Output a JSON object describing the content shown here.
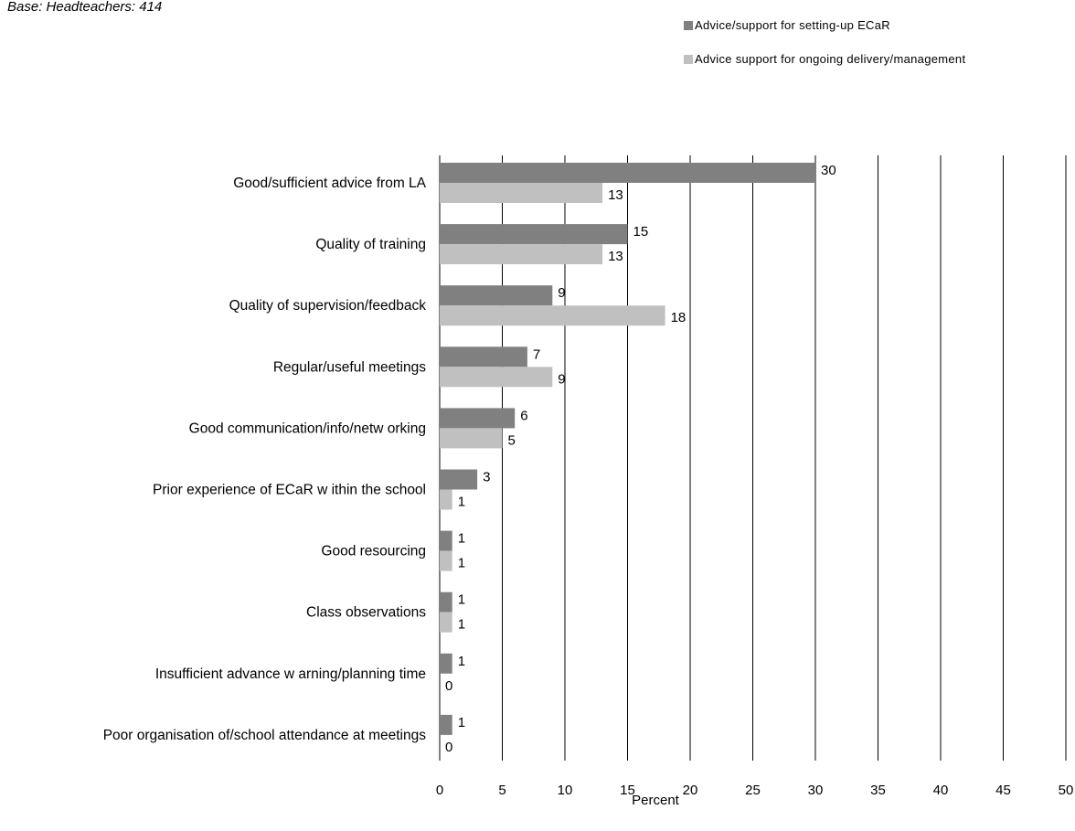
{
  "base_note": "Base: Headteachers: 414",
  "legend": [
    {
      "label": "Advice/support for setting-up ECaR",
      "color": "#808080"
    },
    {
      "label": "Advice support for ongoing delivery/management",
      "color": "#c0c0c0"
    }
  ],
  "chart_data": {
    "type": "bar",
    "orientation": "horizontal",
    "categories": [
      "Good/sufficient advice from LA",
      "Quality of training",
      "Quality of supervision/feedback",
      "Regular/useful meetings",
      "Good communication/info/netw orking",
      "Prior experience of ECaR w ithin the school",
      "Good resourcing",
      "Class observations",
      "Insufficient advance w arning/planning time",
      "Poor organisation of/school attendance at meetings"
    ],
    "series": [
      {
        "name": "Advice/support for setting-up ECaR",
        "color": "#808080",
        "values": [
          30,
          15,
          9,
          7,
          6,
          3,
          1,
          1,
          1,
          1
        ]
      },
      {
        "name": "Advice support for ongoing delivery/management",
        "color": "#c0c0c0",
        "values": [
          13,
          13,
          18,
          9,
          5,
          1,
          1,
          1,
          0,
          0
        ]
      }
    ],
    "xlabel": "Percent",
    "ylabel": "",
    "xlim": [
      0,
      50
    ],
    "xticks": [
      "0",
      "5",
      "10",
      "15",
      "20",
      "25",
      "30",
      "35",
      "40",
      "45",
      "50"
    ],
    "grid": "vertical",
    "legend_position": "top-right"
  }
}
